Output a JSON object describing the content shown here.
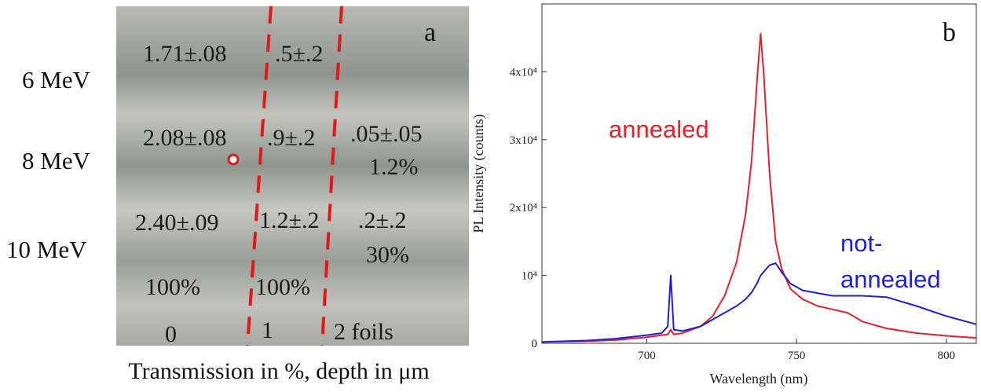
{
  "panel_a": {
    "label": "a",
    "rows": [
      "6 MeV",
      "8 MeV",
      "10 MeV"
    ],
    "cells": [
      "1.71±.08",
      ".5±.2",
      "2.08±.08",
      ".9±.2",
      ".05±.05",
      "1.2%",
      "2.40±.09",
      "1.2±.2",
      ".2±.2",
      "30%",
      "100%",
      "100%",
      "0",
      "1",
      "2 foils"
    ],
    "caption": "Transmission in %, depth in μm"
  },
  "chart_data": {
    "type": "line",
    "label": "b",
    "xlabel": "Wavelength (nm)",
    "ylabel": "PL Intensity (counts)",
    "x": [
      665,
      680,
      690,
      700,
      705,
      707,
      708,
      709,
      712,
      718,
      722,
      726,
      730,
      733,
      735,
      737,
      738,
      739,
      741,
      743,
      745,
      748,
      752,
      757,
      762,
      767,
      772,
      780,
      790,
      800,
      810
    ],
    "series": [
      {
        "color": "#e8202a",
        "values": [
          200,
          300,
          500,
          900,
          1200,
          1300,
          2000,
          1300,
          1500,
          2500,
          4000,
          7000,
          12000,
          19000,
          27000,
          40000,
          45600,
          40000,
          25000,
          15000,
          11000,
          8000,
          6500,
          5500,
          5000,
          4500,
          3200,
          2200,
          1500,
          1100,
          800
        ]
      },
      {
        "color": "#1f1fd8",
        "values": [
          200,
          400,
          700,
          1200,
          1500,
          2500,
          10000,
          2000,
          1800,
          2500,
          3500,
          4500,
          5500,
          6500,
          7500,
          9000,
          10000,
          10500,
          11500,
          11800,
          10500,
          8800,
          7800,
          7400,
          7000,
          7000,
          7000,
          6800,
          5500,
          4000,
          2800
        ]
      }
    ],
    "annotations": [
      {
        "text": "annealed",
        "color": "#e8202a"
      },
      {
        "text": "not-",
        "color": "#1f1fd8"
      },
      {
        "text": "annealed",
        "color": "#1f1fd8"
      }
    ],
    "xlim": [
      665,
      810
    ],
    "ylim": [
      0,
      50000
    ],
    "xticks": [
      700,
      750,
      800
    ],
    "yticks": [
      0,
      {
        "value": 10000,
        "label": "10⁴"
      },
      {
        "value": 20000,
        "label": "2x10⁴"
      },
      {
        "value": 30000,
        "label": "3x10⁴"
      },
      {
        "value": 40000,
        "label": "4x10⁴"
      }
    ]
  }
}
